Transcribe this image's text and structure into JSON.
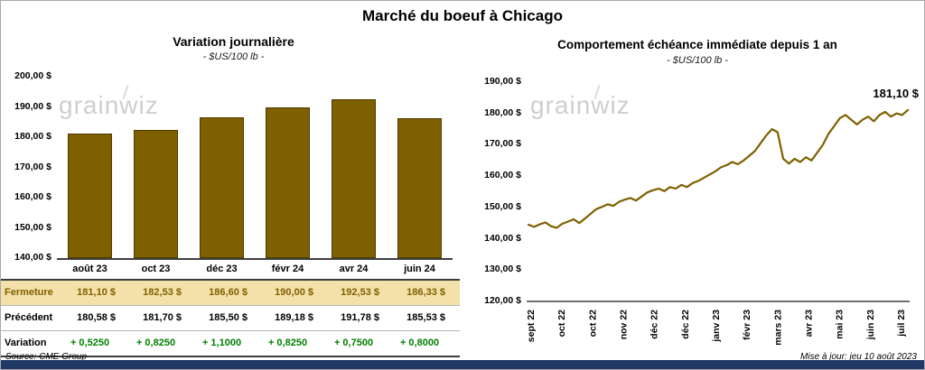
{
  "page": {
    "title": "Marché du boeuf à Chicago",
    "watermark": "grainwiz",
    "source": "Source: CME Group",
    "updated": "Mise à jour: jeu 10 août 2023"
  },
  "colors": {
    "bar": "#7F6000",
    "line": "#7F6000",
    "highlight_bg": "#F3E1A9",
    "highlight_text": "#7F6000",
    "variation_green": "#008000",
    "footer_navy": "#1F3864",
    "watermark_gray": "#C9C9C9"
  },
  "chart_data": [
    {
      "type": "bar",
      "title": "Variation journalière",
      "subtitle": "- $US/100 lb -",
      "categories": [
        "août 23",
        "oct 23",
        "déc 23",
        "févr 24",
        "avr 24",
        "juin 24"
      ],
      "values": [
        181.1,
        182.53,
        186.6,
        190.0,
        192.53,
        186.33
      ],
      "ylim": [
        140,
        200
      ],
      "ytick_step": 10,
      "ytick_labels": [
        "140,00 $",
        "150,00 $",
        "160,00 $",
        "170,00 $",
        "180,00 $",
        "190,00 $",
        "200,00 $"
      ],
      "grid": false,
      "legend": false
    },
    {
      "type": "line",
      "title": "Comportement échéance immédiate depuis 1 an",
      "subtitle": "- $US/100 lb -",
      "x_labels": [
        "sept 22",
        "oct 22",
        "oct 22",
        "nov 22",
        "déc 22",
        "déc 22",
        "janv 23",
        "févr 23",
        "mars 23",
        "avr 23",
        "mai 23",
        "juin 23",
        "juil 23"
      ],
      "values": [
        144.5,
        143.8,
        144.6,
        145.2,
        144.0,
        143.5,
        144.8,
        145.5,
        146.2,
        145.0,
        146.5,
        148.0,
        149.5,
        150.2,
        151.0,
        150.5,
        151.8,
        152.5,
        153.0,
        152.2,
        153.5,
        154.8,
        155.5,
        156.0,
        155.2,
        156.5,
        156.0,
        157.2,
        156.5,
        157.8,
        158.5,
        159.5,
        160.5,
        161.5,
        162.8,
        163.5,
        164.5,
        163.8,
        165.0,
        166.5,
        168.0,
        170.5,
        173.0,
        175.0,
        174.0,
        165.5,
        164.0,
        165.5,
        164.5,
        166.0,
        165.0,
        167.5,
        170.0,
        173.5,
        176.0,
        178.5,
        179.5,
        178.0,
        176.5,
        178.0,
        179.0,
        177.5,
        179.5,
        180.5,
        179.0,
        180.0,
        179.5,
        181.1
      ],
      "ylim": [
        120,
        190
      ],
      "ytick_step": 10,
      "ytick_labels": [
        "120,00 $",
        "130,00 $",
        "140,00 $",
        "150,00 $",
        "160,00 $",
        "170,00 $",
        "180,00 $",
        "190,00 $"
      ],
      "annotation": "181,10 $",
      "last_value": 181.1,
      "grid": false,
      "legend": false
    }
  ],
  "table": {
    "rows": [
      {
        "label": "Fermeture",
        "style": "highlight",
        "values": [
          "181,10 $",
          "182,53 $",
          "186,60 $",
          "190,00 $",
          "192,53 $",
          "186,33 $"
        ]
      },
      {
        "label": "Précédent",
        "style": "prev",
        "values": [
          "180,58 $",
          "181,70 $",
          "185,50 $",
          "189,18 $",
          "191,78 $",
          "185,53 $"
        ]
      },
      {
        "label": "Variation",
        "style": "var",
        "values": [
          "+ 0,5250",
          "+ 0,8250",
          "+ 1,1000",
          "+ 0,8250",
          "+ 0,7500",
          "+ 0,8000"
        ]
      }
    ]
  }
}
